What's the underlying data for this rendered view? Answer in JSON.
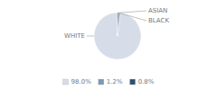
{
  "chart_data": {
    "type": "pie",
    "categories": [
      "WHITE",
      "ASIAN",
      "BLACK"
    ],
    "values": [
      98.0,
      1.2,
      0.8
    ],
    "value_labels": [
      "98.0%",
      "1.2%",
      "0.8%"
    ],
    "colors": [
      "#d6dde8",
      "#7a9ab5",
      "#2d5070"
    ],
    "legend": "bottom"
  }
}
